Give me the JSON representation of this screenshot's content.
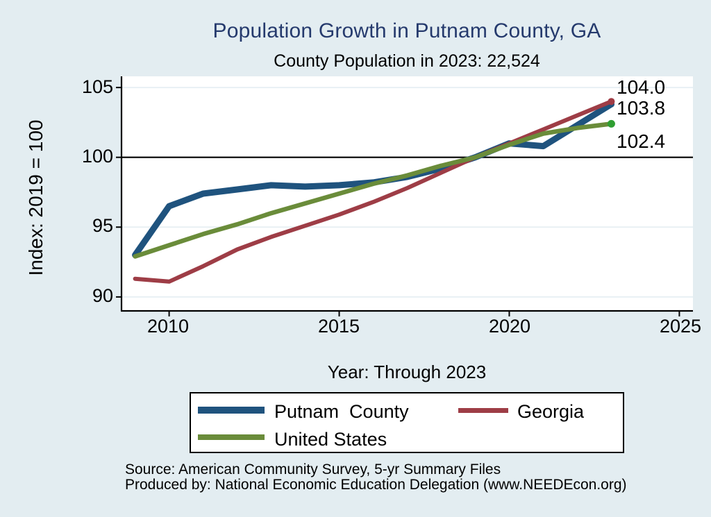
{
  "title": "Population Growth in Putnam County, GA",
  "subtitle": "County Population in 2023: 22,524",
  "colors": {
    "background": "#e3edf1",
    "plot_background": "#ffffff",
    "title_text": "#253a6d",
    "gridline": "#e8f0f4",
    "axis_line": "#000000",
    "reference_line": "#000000"
  },
  "legend": {
    "items": [
      {
        "label": "Putnam  County",
        "series_index": 0
      },
      {
        "label": "Georgia",
        "series_index": 1
      },
      {
        "label": "United States",
        "series_index": 2
      }
    ]
  },
  "source": {
    "line1": "Source: American Community Survey, 5-yr Summary Files",
    "line2": "Produced by: National Economic Education Delegation (www.NEEDEcon.org)"
  },
  "chart_data": {
    "type": "line",
    "title": "Population Growth in Putnam County, GA",
    "subtitle": "County Population in 2023: 22,524",
    "xlabel": "Year: Through 2023",
    "ylabel": "Index: 2019 = 100",
    "x": [
      2009,
      2010,
      2011,
      2012,
      2013,
      2014,
      2015,
      2016,
      2017,
      2018,
      2019,
      2020,
      2021,
      2022,
      2023
    ],
    "series": [
      {
        "name": "Putnam County",
        "color": "#1f537e",
        "line_width": 9,
        "values": [
          93.0,
          96.5,
          97.4,
          97.7,
          98.0,
          97.9,
          98.0,
          98.2,
          98.6,
          99.2,
          100.0,
          101.0,
          100.8,
          102.3,
          103.8
        ],
        "end_label": "103.8",
        "end_dot_color": "#1f537e",
        "end_dot_r": 4.5
      },
      {
        "name": "Georgia",
        "color": "#9e3d46",
        "line_width": 6,
        "values": [
          91.3,
          91.1,
          92.2,
          93.4,
          94.3,
          95.1,
          95.9,
          96.8,
          97.8,
          98.9,
          100.0,
          101.0,
          102.0,
          103.0,
          104.0
        ],
        "end_label": "104.0",
        "end_dot_color": "#a03b44",
        "end_dot_r": 5
      },
      {
        "name": "United States",
        "color": "#6a8c3a",
        "line_width": 6.5,
        "values": [
          92.9,
          93.7,
          94.5,
          95.2,
          96.0,
          96.7,
          97.4,
          98.1,
          98.7,
          99.4,
          100.0,
          100.9,
          101.7,
          102.1,
          102.4
        ],
        "end_label": "102.4",
        "end_dot_color": "#2f9e32",
        "end_dot_r": 5.5
      }
    ],
    "xlim": [
      2008.6,
      2025.4
    ],
    "ylim": [
      89.0,
      105.8
    ],
    "x_ticks": [
      2010,
      2015,
      2020,
      2025
    ],
    "y_ticks": [
      105,
      100,
      95,
      90
    ],
    "x_tick_labels": [
      "2010",
      "2015",
      "2020",
      "2025"
    ],
    "y_tick_labels": [
      "105",
      "100",
      "95",
      "90"
    ],
    "gridlines": [
      90,
      95,
      105
    ],
    "reference_line": 100,
    "grid": "on",
    "legend_position": "bottom"
  }
}
